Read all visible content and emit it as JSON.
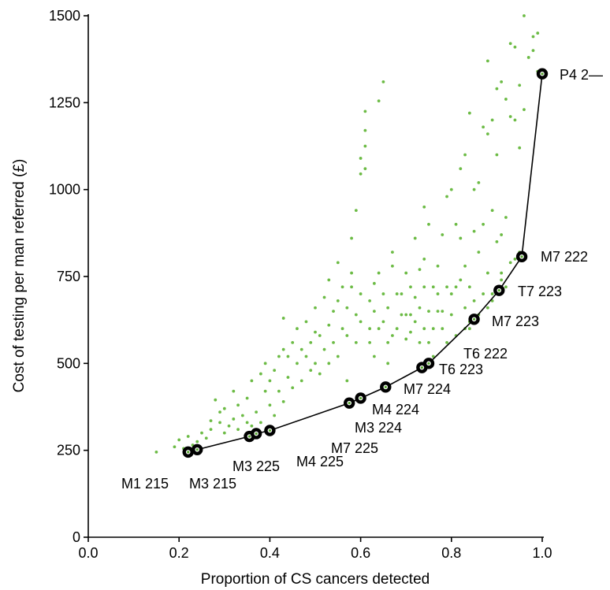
{
  "chart_data": {
    "type": "scatter",
    "title": "",
    "xlabel": "Proportion of CS cancers detected",
    "ylabel": "Cost of testing per man referred (£)",
    "xlim": [
      0.0,
      1.0
    ],
    "ylim": [
      0,
      1500
    ],
    "x_ticks": [
      "0.0",
      "0.2",
      "0.4",
      "0.6",
      "0.8",
      "1.0"
    ],
    "y_ticks": [
      "0",
      "250",
      "500",
      "750",
      "1000",
      "1250",
      "1500"
    ],
    "grid": false,
    "legend": "none",
    "colors": {
      "scatter": "#6cbb45",
      "frontier": "#000000"
    },
    "series": [
      {
        "style": "green-dots",
        "points": [
          [
            0.15,
            245
          ],
          [
            0.19,
            260
          ],
          [
            0.2,
            280
          ],
          [
            0.21,
            255
          ],
          [
            0.22,
            290
          ],
          [
            0.23,
            265
          ],
          [
            0.24,
            275
          ],
          [
            0.25,
            300
          ],
          [
            0.26,
            285
          ],
          [
            0.27,
            310
          ],
          [
            0.27,
            335
          ],
          [
            0.28,
            395
          ],
          [
            0.29,
            360
          ],
          [
            0.29,
            330
          ],
          [
            0.3,
            370
          ],
          [
            0.3,
            300
          ],
          [
            0.31,
            320
          ],
          [
            0.32,
            340
          ],
          [
            0.32,
            420
          ],
          [
            0.33,
            310
          ],
          [
            0.33,
            380
          ],
          [
            0.34,
            350
          ],
          [
            0.35,
            330
          ],
          [
            0.35,
            400
          ],
          [
            0.36,
            320
          ],
          [
            0.36,
            450
          ],
          [
            0.37,
            360
          ],
          [
            0.37,
            310
          ],
          [
            0.38,
            470
          ],
          [
            0.38,
            330
          ],
          [
            0.39,
            420
          ],
          [
            0.39,
            500
          ],
          [
            0.4,
            380
          ],
          [
            0.4,
            450
          ],
          [
            0.41,
            480
          ],
          [
            0.41,
            350
          ],
          [
            0.42,
            520
          ],
          [
            0.42,
            420
          ],
          [
            0.43,
            540
          ],
          [
            0.43,
            390
          ],
          [
            0.43,
            630
          ],
          [
            0.44,
            520
          ],
          [
            0.44,
            460
          ],
          [
            0.45,
            560
          ],
          [
            0.45,
            430
          ],
          [
            0.46,
            500
          ],
          [
            0.46,
            600
          ],
          [
            0.47,
            540
          ],
          [
            0.47,
            450
          ],
          [
            0.48,
            520
          ],
          [
            0.48,
            620
          ],
          [
            0.49,
            480
          ],
          [
            0.49,
            560
          ],
          [
            0.5,
            500
          ],
          [
            0.5,
            590
          ],
          [
            0.5,
            660
          ],
          [
            0.51,
            470
          ],
          [
            0.51,
            580
          ],
          [
            0.52,
            690
          ],
          [
            0.52,
            540
          ],
          [
            0.53,
            740
          ],
          [
            0.53,
            610
          ],
          [
            0.53,
            500
          ],
          [
            0.54,
            560
          ],
          [
            0.54,
            650
          ],
          [
            0.55,
            520
          ],
          [
            0.55,
            680
          ],
          [
            0.55,
            790
          ],
          [
            0.56,
            600
          ],
          [
            0.56,
            720
          ],
          [
            0.57,
            580
          ],
          [
            0.57,
            660
          ],
          [
            0.57,
            450
          ],
          [
            0.58,
            720
          ],
          [
            0.58,
            760
          ],
          [
            0.58,
            860
          ],
          [
            0.59,
            640
          ],
          [
            0.59,
            560
          ],
          [
            0.59,
            940
          ],
          [
            0.6,
            1045
          ],
          [
            0.6,
            1090
          ],
          [
            0.6,
            700
          ],
          [
            0.6,
            620
          ],
          [
            0.61,
            1225
          ],
          [
            0.61,
            1170
          ],
          [
            0.61,
            1125
          ],
          [
            0.61,
            1060
          ],
          [
            0.62,
            680
          ],
          [
            0.62,
            600
          ],
          [
            0.62,
            560
          ],
          [
            0.63,
            730
          ],
          [
            0.63,
            650
          ],
          [
            0.63,
            520
          ],
          [
            0.64,
            1255
          ],
          [
            0.64,
            760
          ],
          [
            0.64,
            600
          ],
          [
            0.65,
            1310
          ],
          [
            0.65,
            700
          ],
          [
            0.65,
            620
          ],
          [
            0.66,
            560
          ],
          [
            0.66,
            660
          ],
          [
            0.66,
            500
          ],
          [
            0.67,
            780
          ],
          [
            0.67,
            820
          ],
          [
            0.67,
            580
          ],
          [
            0.68,
            700
          ],
          [
            0.68,
            600
          ],
          [
            0.69,
            640
          ],
          [
            0.69,
            700
          ],
          [
            0.7,
            760
          ],
          [
            0.7,
            570
          ],
          [
            0.7,
            640
          ],
          [
            0.71,
            640
          ],
          [
            0.71,
            590
          ],
          [
            0.71,
            720
          ],
          [
            0.72,
            860
          ],
          [
            0.72,
            690
          ],
          [
            0.72,
            620
          ],
          [
            0.73,
            770
          ],
          [
            0.73,
            660
          ],
          [
            0.73,
            560
          ],
          [
            0.74,
            950
          ],
          [
            0.74,
            800
          ],
          [
            0.74,
            720
          ],
          [
            0.74,
            600
          ],
          [
            0.75,
            900
          ],
          [
            0.75,
            650
          ],
          [
            0.75,
            560
          ],
          [
            0.76,
            720
          ],
          [
            0.76,
            600
          ],
          [
            0.76,
            520
          ],
          [
            0.77,
            780
          ],
          [
            0.77,
            650
          ],
          [
            0.77,
            700
          ],
          [
            0.78,
            870
          ],
          [
            0.78,
            650
          ],
          [
            0.78,
            600
          ],
          [
            0.79,
            980
          ],
          [
            0.79,
            720
          ],
          [
            0.79,
            560
          ],
          [
            0.8,
            1000
          ],
          [
            0.8,
            700
          ],
          [
            0.8,
            640
          ],
          [
            0.81,
            900
          ],
          [
            0.81,
            720
          ],
          [
            0.81,
            580
          ],
          [
            0.82,
            1060
          ],
          [
            0.82,
            860
          ],
          [
            0.82,
            740
          ],
          [
            0.83,
            1100
          ],
          [
            0.83,
            780
          ],
          [
            0.83,
            660
          ],
          [
            0.84,
            1220
          ],
          [
            0.84,
            720
          ],
          [
            0.84,
            600
          ],
          [
            0.85,
            1000
          ],
          [
            0.85,
            880
          ],
          [
            0.85,
            680
          ],
          [
            0.86,
            1020
          ],
          [
            0.86,
            820
          ],
          [
            0.87,
            1180
          ],
          [
            0.87,
            900
          ],
          [
            0.87,
            700
          ],
          [
            0.88,
            1370
          ],
          [
            0.88,
            1160
          ],
          [
            0.88,
            760
          ],
          [
            0.89,
            1200
          ],
          [
            0.89,
            940
          ],
          [
            0.89,
            700
          ],
          [
            0.9,
            1290
          ],
          [
            0.9,
            1100
          ],
          [
            0.9,
            850
          ],
          [
            0.91,
            1310
          ],
          [
            0.91,
            870
          ],
          [
            0.91,
            760
          ],
          [
            0.92,
            1260
          ],
          [
            0.92,
            920
          ],
          [
            0.93,
            1420
          ],
          [
            0.93,
            1210
          ],
          [
            0.94,
            1410
          ],
          [
            0.94,
            1200
          ],
          [
            0.95,
            1120
          ],
          [
            0.95,
            1300
          ],
          [
            0.96,
            1500
          ],
          [
            0.96,
            1230
          ],
          [
            0.97,
            1380
          ],
          [
            0.98,
            1400
          ],
          [
            0.98,
            1440
          ],
          [
            0.99,
            1450
          ],
          [
            0.99,
            1340
          ],
          [
            0.91,
            740
          ],
          [
            0.92,
            720
          ],
          [
            0.93,
            790
          ],
          [
            0.94,
            800
          ],
          [
            0.95,
            820
          ],
          [
            0.86,
            640
          ],
          [
            0.88,
            660
          ],
          [
            0.89,
            680
          ],
          [
            0.84,
            620
          ],
          [
            0.83,
            600
          ]
        ]
      },
      {
        "style": "frontier",
        "points": [
          [
            0.22,
            245,
            "M1 215"
          ],
          [
            0.24,
            252,
            "M3 215"
          ],
          [
            0.355,
            290,
            ""
          ],
          [
            0.37,
            298,
            ""
          ],
          [
            0.4,
            307,
            "M3 225"
          ],
          [
            0.575,
            386,
            ""
          ],
          [
            0.6,
            400,
            "M4 225"
          ],
          [
            0.655,
            432,
            "M7 225"
          ],
          [
            0.735,
            488,
            "M3 224"
          ],
          [
            0.75,
            500,
            "M4 224"
          ],
          [
            0.85,
            627,
            "M7 224"
          ],
          [
            0.905,
            710,
            "T6 223"
          ],
          [
            0.955,
            807,
            "T6 222"
          ],
          [
            1.0,
            1333,
            "M7 223"
          ]
        ]
      }
    ],
    "annotations": [
      "M1 215",
      "M3 215",
      "M3 225",
      "M4 225",
      "M7 225",
      "M3 224",
      "M4 224",
      "M7 224",
      "T6 223",
      "T6 222",
      "M7 223",
      "T7 223",
      "M7 222",
      "P4 2—"
    ]
  }
}
